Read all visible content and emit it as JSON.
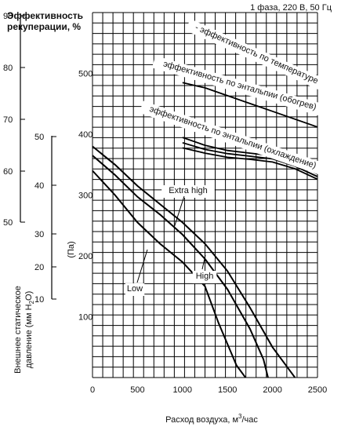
{
  "header": {
    "power": "1 фаза, 220 В, 50 Гц"
  },
  "chart_data": {
    "type": "line",
    "xlabel_prefix": "Расход воздуха, м",
    "xlabel_sup": "3",
    "xlabel_suffix": "/час",
    "xlim": [
      0,
      2500
    ],
    "x_ticks": [
      0,
      500,
      1000,
      1500,
      2000,
      2500
    ],
    "pressure_axis": {
      "label": "(Па)",
      "ylim": [
        0,
        600
      ],
      "ticks": [
        100,
        200,
        300,
        400,
        500
      ]
    },
    "pressure_mm_axis": {
      "label_line1": "Внешнее статическое",
      "label_line2_prefix": "давление (мм H",
      "label_line2_sub": "2",
      "label_line2_suffix": "O)",
      "ticks": [
        10,
        20,
        30,
        40,
        50
      ]
    },
    "efficiency_axis": {
      "label_line1": "Эффективность",
      "label_line2": "рекуперации, %",
      "ticks": [
        50,
        60,
        70,
        80,
        90
      ]
    },
    "pressure_series": [
      {
        "name": "Extra high",
        "points": [
          [
            0,
            380
          ],
          [
            250,
            350
          ],
          [
            500,
            315
          ],
          [
            750,
            285
          ],
          [
            1000,
            255
          ],
          [
            1250,
            220
          ],
          [
            1500,
            175
          ],
          [
            1750,
            115
          ],
          [
            2000,
            50
          ],
          [
            2200,
            10
          ],
          [
            2250,
            0
          ]
        ]
      },
      {
        "name": "High",
        "points": [
          [
            0,
            365
          ],
          [
            250,
            333
          ],
          [
            500,
            297
          ],
          [
            750,
            268
          ],
          [
            1000,
            235
          ],
          [
            1250,
            195
          ],
          [
            1500,
            145
          ],
          [
            1750,
            80
          ],
          [
            1900,
            30
          ],
          [
            1950,
            0
          ]
        ]
      },
      {
        "name": "Low",
        "points": [
          [
            0,
            340
          ],
          [
            250,
            300
          ],
          [
            500,
            255
          ],
          [
            750,
            220
          ],
          [
            1000,
            190
          ],
          [
            1250,
            150
          ],
          [
            1400,
            90
          ],
          [
            1600,
            20
          ],
          [
            1700,
            0
          ]
        ]
      }
    ],
    "efficiency_series": [
      {
        "name": "эффективность по температуре",
        "points": [
          [
            1000,
            86.5
          ],
          [
            1250,
            85.5
          ],
          [
            1500,
            84
          ],
          [
            1750,
            82.5
          ],
          [
            2000,
            81
          ],
          [
            2250,
            79.5
          ],
          [
            2500,
            78
          ]
        ]
      },
      {
        "name": "эффективность по энтальпии (обогрев)",
        "points": [
          [
            1000,
            76
          ],
          [
            1250,
            74.5
          ],
          [
            1500,
            73.5
          ],
          [
            1750,
            73
          ],
          [
            2000,
            72.5
          ],
          [
            2250,
            71
          ],
          [
            2500,
            69
          ]
        ]
      },
      {
        "name": "эффективность по энтальпии (охлаждение)",
        "points": [
          [
            1000,
            74
          ],
          [
            1250,
            73
          ],
          [
            1500,
            72.2
          ],
          [
            1750,
            71.8
          ],
          [
            2000,
            71.3
          ],
          [
            2250,
            70
          ],
          [
            2500,
            68
          ]
        ]
      },
      {
        "name": "",
        "points": [
          [
            1000,
            75
          ],
          [
            1250,
            73.7
          ],
          [
            1500,
            72.9
          ],
          [
            1750,
            72.4
          ],
          [
            2000,
            71.9
          ],
          [
            2250,
            70.5
          ],
          [
            2500,
            68.5
          ]
        ]
      }
    ]
  }
}
